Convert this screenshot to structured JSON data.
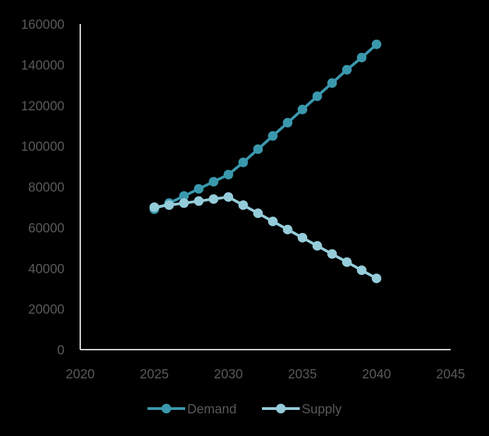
{
  "chart_data": {
    "type": "line",
    "title": "",
    "xlabel": "",
    "ylabel": "",
    "xlim": [
      2020,
      2045
    ],
    "ylim": [
      0,
      160000
    ],
    "xticks": [
      "2020",
      "2025",
      "2030",
      "2035",
      "2040",
      "2045"
    ],
    "yticks": [
      "0",
      "20000",
      "40000",
      "60000",
      "80000",
      "100000",
      "120000",
      "140000",
      "160000"
    ],
    "grid": false,
    "legend": "bottom",
    "x": [
      2025,
      2026,
      2027,
      2028,
      2029,
      2030,
      2031,
      2032,
      2033,
      2034,
      2035,
      2036,
      2037,
      2038,
      2039,
      2040
    ],
    "series": [
      {
        "name": "Demand",
        "color": "#3A98AD",
        "values": [
          69000,
          72000,
          75500,
          79000,
          82500,
          86000,
          92000,
          98500,
          105000,
          111500,
          118000,
          124500,
          131000,
          137500,
          143500,
          150000
        ]
      },
      {
        "name": "Supply",
        "color": "#95CCDA",
        "values": [
          70000,
          71000,
          72000,
          73000,
          74000,
          75000,
          71000,
          67000,
          63000,
          59000,
          55000,
          51000,
          47000,
          43000,
          39000,
          35000
        ]
      }
    ]
  },
  "colors": {
    "background": "#000000",
    "axis": "#D9D9D9",
    "tick_text": "#595959"
  }
}
